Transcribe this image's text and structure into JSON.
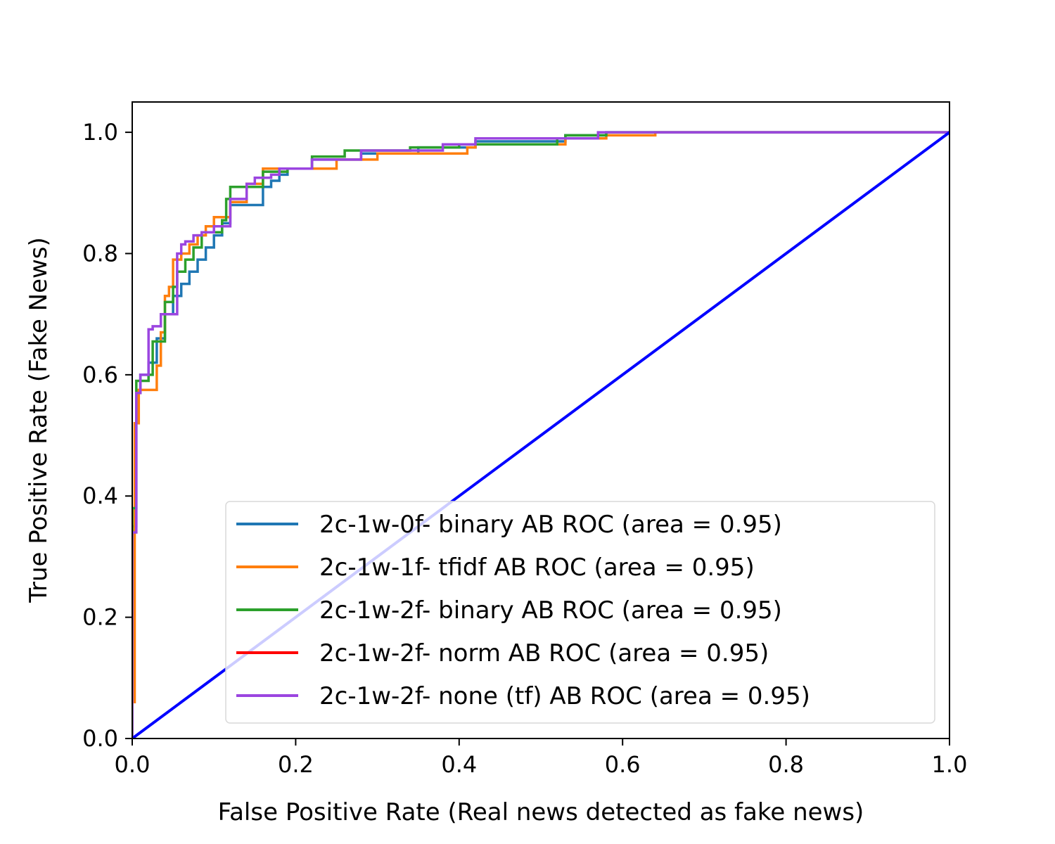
{
  "chart_data": {
    "type": "line",
    "title": "",
    "xlabel": "False Positive Rate (Real news detected as fake news)",
    "ylabel": "True Positive Rate (Fake News)",
    "xlim": [
      0.0,
      1.0
    ],
    "ylim": [
      0.0,
      1.05
    ],
    "xticks": [
      "0.0",
      "0.2",
      "0.4",
      "0.6",
      "0.8",
      "1.0"
    ],
    "yticks": [
      "0.0",
      "0.2",
      "0.4",
      "0.6",
      "0.8",
      "1.0"
    ],
    "grid": false,
    "legend_position": "lower-right",
    "series": [
      {
        "name": "2c-1w-0f- binary AB ROC (area = 0.95)",
        "color": "#1f77b4",
        "x": [
          0,
          0,
          0.005,
          0.005,
          0.01,
          0.01,
          0.02,
          0.02,
          0.03,
          0.03,
          0.04,
          0.04,
          0.05,
          0.05,
          0.06,
          0.06,
          0.07,
          0.07,
          0.08,
          0.08,
          0.09,
          0.09,
          0.1,
          0.1,
          0.11,
          0.11,
          0.12,
          0.12,
          0.16,
          0.16,
          0.17,
          0.17,
          0.18,
          0.18,
          0.19,
          0.19,
          0.22,
          0.22,
          0.28,
          0.28,
          0.35,
          0.35,
          0.42,
          0.42,
          0.53,
          0.53,
          0.58,
          0.58,
          1.0
        ],
        "y": [
          0,
          0.35,
          0.35,
          0.57,
          0.57,
          0.6,
          0.6,
          0.62,
          0.62,
          0.66,
          0.66,
          0.7,
          0.7,
          0.73,
          0.73,
          0.75,
          0.75,
          0.77,
          0.77,
          0.79,
          0.79,
          0.81,
          0.81,
          0.83,
          0.83,
          0.85,
          0.85,
          0.88,
          0.88,
          0.91,
          0.91,
          0.92,
          0.92,
          0.93,
          0.93,
          0.94,
          0.94,
          0.955,
          0.955,
          0.965,
          0.965,
          0.975,
          0.975,
          0.985,
          0.985,
          0.995,
          0.995,
          1.0,
          1.0
        ]
      },
      {
        "name": "2c-1w-1f- tfidf AB ROC (area = 0.95)",
        "color": "#ff7f0e",
        "x": [
          0,
          0,
          0.003,
          0.003,
          0.008,
          0.008,
          0.015,
          0.015,
          0.03,
          0.03,
          0.035,
          0.035,
          0.04,
          0.04,
          0.045,
          0.045,
          0.05,
          0.05,
          0.06,
          0.06,
          0.07,
          0.07,
          0.08,
          0.08,
          0.09,
          0.09,
          0.1,
          0.1,
          0.12,
          0.12,
          0.14,
          0.14,
          0.16,
          0.16,
          0.25,
          0.25,
          0.3,
          0.3,
          0.41,
          0.41,
          0.42,
          0.42,
          0.53,
          0.53,
          0.58,
          0.58,
          0.64,
          0.64,
          1.0
        ],
        "y": [
          0,
          0.06,
          0.06,
          0.52,
          0.52,
          0.575,
          0.575,
          0.575,
          0.575,
          0.615,
          0.615,
          0.67,
          0.67,
          0.73,
          0.73,
          0.745,
          0.745,
          0.79,
          0.79,
          0.8,
          0.8,
          0.815,
          0.815,
          0.83,
          0.83,
          0.845,
          0.845,
          0.86,
          0.86,
          0.885,
          0.885,
          0.915,
          0.915,
          0.94,
          0.94,
          0.955,
          0.955,
          0.965,
          0.965,
          0.975,
          0.975,
          0.98,
          0.98,
          0.99,
          0.99,
          0.995,
          0.995,
          1.0,
          1.0
        ]
      },
      {
        "name": "2c-1w-2f- binary AB ROC (area = 0.95)",
        "color": "#2ca02c",
        "x": [
          0,
          0,
          0.005,
          0.005,
          0.012,
          0.012,
          0.02,
          0.02,
          0.025,
          0.025,
          0.04,
          0.04,
          0.05,
          0.05,
          0.055,
          0.055,
          0.065,
          0.065,
          0.075,
          0.075,
          0.085,
          0.085,
          0.11,
          0.11,
          0.115,
          0.115,
          0.12,
          0.12,
          0.16,
          0.16,
          0.19,
          0.19,
          0.22,
          0.22,
          0.26,
          0.26,
          0.34,
          0.34,
          0.4,
          0.4,
          0.52,
          0.52,
          0.53,
          0.53,
          0.58,
          0.58,
          1.0
        ],
        "y": [
          0,
          0.38,
          0.38,
          0.59,
          0.59,
          0.59,
          0.59,
          0.6,
          0.6,
          0.655,
          0.655,
          0.72,
          0.72,
          0.745,
          0.745,
          0.77,
          0.77,
          0.79,
          0.79,
          0.81,
          0.81,
          0.835,
          0.835,
          0.855,
          0.855,
          0.89,
          0.89,
          0.91,
          0.91,
          0.935,
          0.935,
          0.94,
          0.94,
          0.96,
          0.96,
          0.97,
          0.97,
          0.975,
          0.975,
          0.98,
          0.98,
          0.99,
          0.99,
          0.995,
          0.995,
          1.0,
          1.0
        ]
      },
      {
        "name": "2c-1w-2f- norm AB ROC (area = 0.95)",
        "color": "#ff0000",
        "x": [],
        "y": []
      },
      {
        "name": "2c-1w-2f- none (tf) AB ROC (area = 0.95)",
        "color": "#9b45e0",
        "x": [
          0,
          0,
          0.005,
          0.005,
          0.01,
          0.01,
          0.02,
          0.02,
          0.025,
          0.025,
          0.035,
          0.035,
          0.055,
          0.055,
          0.06,
          0.06,
          0.065,
          0.065,
          0.075,
          0.075,
          0.085,
          0.085,
          0.1,
          0.1,
          0.12,
          0.12,
          0.14,
          0.14,
          0.15,
          0.15,
          0.17,
          0.17,
          0.18,
          0.18,
          0.22,
          0.22,
          0.28,
          0.28,
          0.38,
          0.38,
          0.42,
          0.42,
          0.57,
          0.57,
          1.0
        ],
        "y": [
          0,
          0.34,
          0.34,
          0.57,
          0.57,
          0.6,
          0.6,
          0.675,
          0.675,
          0.68,
          0.68,
          0.7,
          0.7,
          0.8,
          0.8,
          0.815,
          0.815,
          0.82,
          0.82,
          0.83,
          0.83,
          0.835,
          0.835,
          0.845,
          0.845,
          0.89,
          0.89,
          0.915,
          0.915,
          0.925,
          0.925,
          0.93,
          0.93,
          0.94,
          0.94,
          0.955,
          0.955,
          0.97,
          0.97,
          0.98,
          0.98,
          0.99,
          0.99,
          1.0,
          1.0
        ]
      }
    ],
    "reference_line": {
      "color": "#0000ff",
      "x": [
        0,
        1
      ],
      "y": [
        0,
        1
      ]
    }
  }
}
